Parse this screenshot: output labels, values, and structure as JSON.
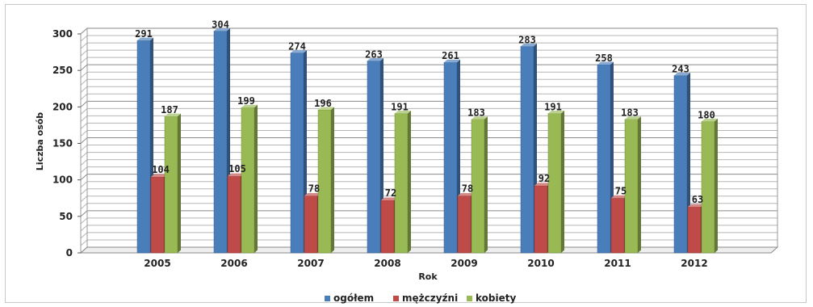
{
  "chart_data": {
    "type": "bar",
    "categories": [
      "2005",
      "2006",
      "2007",
      "2008",
      "2009",
      "2010",
      "2011",
      "2012"
    ],
    "series": [
      {
        "name": "ogółem",
        "values": [
          291,
          304,
          274,
          263,
          261,
          283,
          258,
          243
        ],
        "color": "#4a7ebb"
      },
      {
        "name": "mężczyźni",
        "values": [
          104,
          105,
          78,
          72,
          78,
          92,
          75,
          63
        ],
        "color": "#be4b48"
      },
      {
        "name": "kobiety",
        "values": [
          187,
          199,
          196,
          191,
          183,
          191,
          183,
          180
        ],
        "color": "#98b954"
      }
    ],
    "xlabel": "Rok",
    "ylabel": "Liczba osób",
    "ylim": [
      0,
      300
    ],
    "yticks": [
      0,
      50,
      100,
      150,
      200,
      250,
      300
    ],
    "grid": true,
    "legend": "bottom",
    "data_labels": true,
    "style": "3d-clustered-bar"
  }
}
